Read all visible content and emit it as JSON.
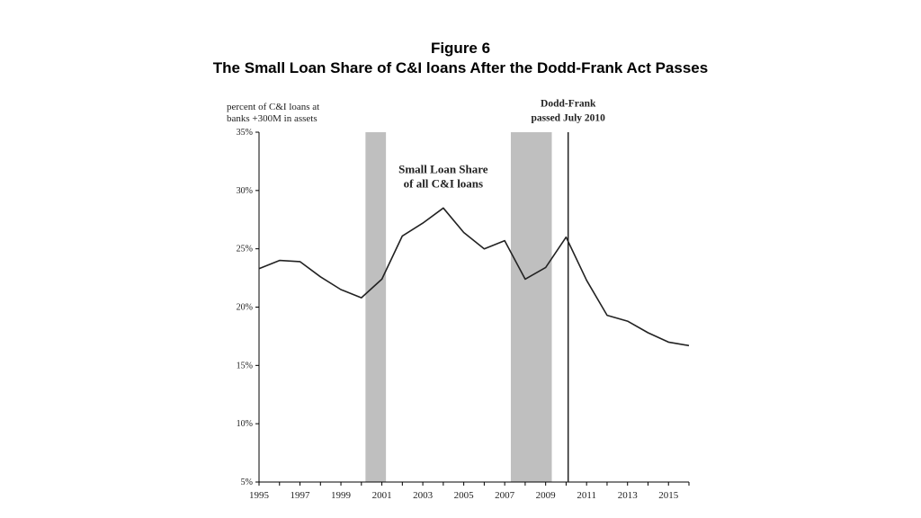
{
  "figure": {
    "number": "Figure 6",
    "caption": "The Small Loan Share of C&I loans After the Dodd-Frank Act Passes"
  },
  "chart_data": {
    "type": "line",
    "ylabel_lines": [
      "percent of C&I loans at",
      "banks +300M in assets"
    ],
    "xlabel": "",
    "xlim": [
      1995,
      2016
    ],
    "ylim": [
      5,
      35
    ],
    "y_ticks": [
      "5%",
      "10%",
      "15%",
      "20%",
      "25%",
      "30%",
      "35%"
    ],
    "y_tick_values": [
      5,
      10,
      15,
      20,
      25,
      30,
      35
    ],
    "x_ticks": [
      "1995",
      "1997",
      "1999",
      "2001",
      "2003",
      "2005",
      "2007",
      "2009",
      "2011",
      "2013",
      "2015"
    ],
    "x_tick_values": [
      1995,
      1997,
      1999,
      2001,
      2003,
      2005,
      2007,
      2009,
      2011,
      2013,
      2015
    ],
    "grid": false,
    "series": [
      {
        "color": "#222222",
        "x": [
          1995,
          1996,
          1997,
          1998,
          1999,
          2000,
          2001,
          2002,
          2003,
          2004,
          2005,
          2006,
          2007,
          2008,
          2009,
          2010,
          2011,
          2012,
          2013,
          2014,
          2015,
          2016
        ],
        "values": [
          23.3,
          24.0,
          23.9,
          22.6,
          21.5,
          20.8,
          22.4,
          26.1,
          27.2,
          28.5,
          26.4,
          25.0,
          25.7,
          22.4,
          23.4,
          26.0,
          22.3,
          19.3,
          18.8,
          17.8,
          17.0,
          16.7
        ]
      }
    ],
    "shaded_periods": [
      {
        "start": 2000.2,
        "end": 2001.2,
        "color": "#bfbfbf"
      },
      {
        "start": 2007.3,
        "end": 2009.3,
        "color": "#bfbfbf"
      }
    ],
    "vertical_markers": [
      {
        "x": 2010.1,
        "color": "#222222"
      }
    ],
    "annotations": [
      {
        "lines": [
          "Small Loan Share",
          "of all C&I loans"
        ],
        "x": 2004.0,
        "y": 31.5
      },
      {
        "lines": [
          "Dodd-Frank",
          "passed July 2010"
        ],
        "x": 2010.1,
        "y": 37.2
      }
    ]
  }
}
